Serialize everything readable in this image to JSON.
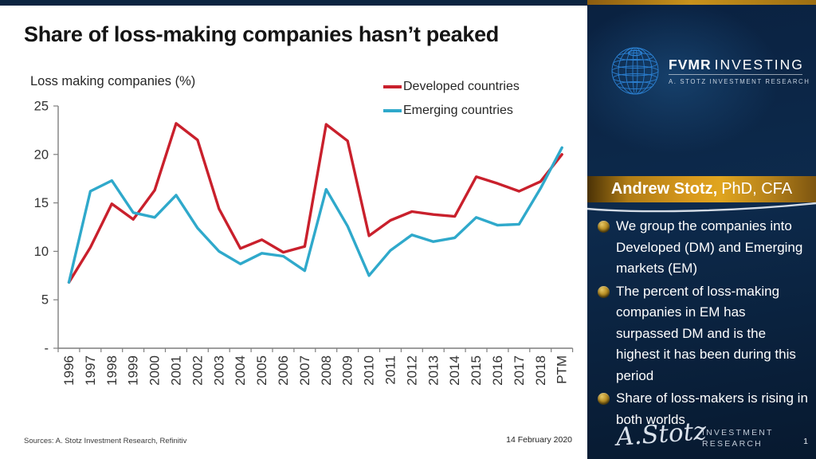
{
  "slide": {
    "title": "Share of loss-making companies hasn’t peaked",
    "footer": {
      "sources": "Sources: A. Stotz Investment Research, Refinitiv",
      "date": "14 February 2020"
    }
  },
  "chart_data": {
    "type": "line",
    "title": "Share of loss-making companies hasn’t peaked",
    "axis_title": "Loss making companies (%)",
    "xlabel": "",
    "ylabel": "Loss making companies (%)",
    "ylim": [
      0,
      25
    ],
    "yticks": [
      0,
      5,
      10,
      15,
      20,
      25
    ],
    "ytick_labels": [
      "-",
      "5",
      "10",
      "15",
      "20",
      "25"
    ],
    "grid": false,
    "legend_position": "top-right",
    "categories": [
      "1996",
      "1997",
      "1998",
      "1999",
      "2000",
      "2001",
      "2002",
      "2003",
      "2004",
      "2005",
      "2006",
      "2007",
      "2008",
      "2009",
      "2010",
      "2011",
      "2012",
      "2013",
      "2014",
      "2015",
      "2016",
      "2017",
      "2018",
      "PTM"
    ],
    "series": [
      {
        "name": "Developed countries",
        "color": "#c9202c",
        "values": [
          6.8,
          10.4,
          14.9,
          13.3,
          16.3,
          23.2,
          21.5,
          14.4,
          10.3,
          11.2,
          9.9,
          10.5,
          23.1,
          21.4,
          11.6,
          13.2,
          14.1,
          13.8,
          13.6,
          17.7,
          17.0,
          16.2,
          17.2,
          20.0
        ]
      },
      {
        "name": "Emerging countries",
        "color": "#2fa9cb",
        "values": [
          6.8,
          16.2,
          17.3,
          14.0,
          13.5,
          15.8,
          12.4,
          10.0,
          8.7,
          9.8,
          9.5,
          8.0,
          16.4,
          12.6,
          7.5,
          10.1,
          11.7,
          11.0,
          11.4,
          13.5,
          12.7,
          12.8,
          16.5,
          20.7
        ]
      }
    ]
  },
  "sidebar": {
    "brand": {
      "name_bold": "FVMR",
      "name_light": "INVESTING",
      "tagline": "A. STOTZ INVESTMENT RESEARCH"
    },
    "author_banner": {
      "name": "Andrew Stotz,",
      "credentials": "PhD, CFA"
    },
    "bullets": [
      "We group the companies into Developed (DM) and Emerging markets (EM)",
      "The percent of loss-making companies in EM has surpassed DM and is the highest it has been during this period",
      "Share of loss-makers is rising in both worlds"
    ],
    "signature": {
      "script": "A.Stotz",
      "line1": "INVESTMENT",
      "line2": "RESEARCH"
    },
    "page_number": "1"
  }
}
